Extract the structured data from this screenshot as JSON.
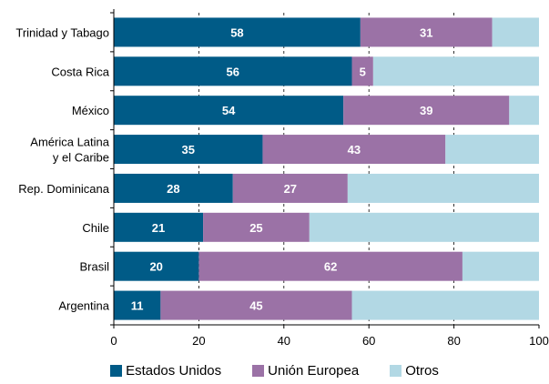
{
  "chart_data": {
    "type": "bar",
    "orientation": "horizontal",
    "stacked": true,
    "percent_scale": true,
    "categories": [
      "Trinidad y Tabago",
      "Costa Rica",
      "México",
      "América Latina\ny el Caribe",
      "Rep. Dominicana",
      "Chile",
      "Brasil",
      "Argentina"
    ],
    "series": [
      {
        "name": "Estados Unidos",
        "color": "#005b87",
        "values": [
          58,
          56,
          54,
          35,
          28,
          21,
          20,
          11
        ],
        "labels": [
          "58",
          "56",
          "54",
          "35",
          "28",
          "21",
          "20",
          "11"
        ]
      },
      {
        "name": "Unión Europea",
        "color": "#9b72a6",
        "values": [
          31,
          5,
          39,
          43,
          27,
          25,
          62,
          45
        ],
        "labels": [
          "31",
          "5",
          "39",
          "43",
          "27",
          "25",
          "62",
          "45"
        ]
      },
      {
        "name": "Otros",
        "color": "#b2d8e4",
        "values": [
          11,
          39,
          7,
          22,
          45,
          54,
          18,
          44
        ],
        "labels": [
          "",
          "",
          "",
          "",
          "",
          "",
          "",
          ""
        ]
      }
    ],
    "xlim": [
      0,
      100
    ],
    "xticks": [
      "0",
      "20",
      "40",
      "60",
      "80",
      "100"
    ],
    "grid": "vertical dashed",
    "legend_position": "bottom",
    "title": "",
    "xlabel": "",
    "ylabel": ""
  }
}
